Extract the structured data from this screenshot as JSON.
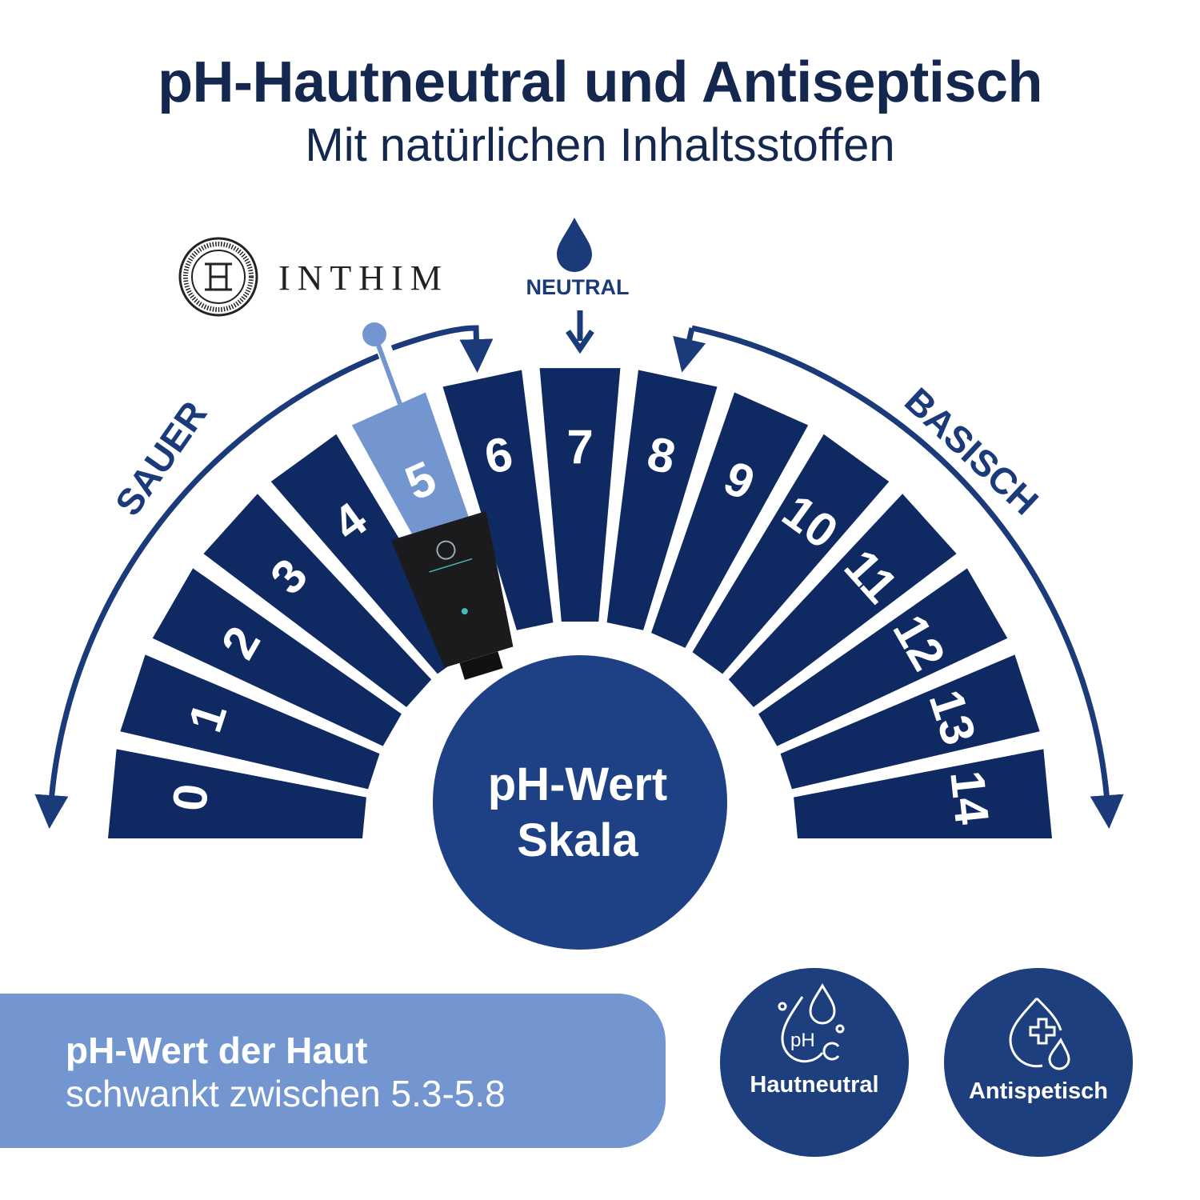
{
  "header": {
    "title": "pH-Hautneutral und Antiseptisch",
    "subtitle": "Mit natürlichen Inhaltsstoffen"
  },
  "brand": {
    "name": "INTHIM",
    "logo_letters": "IH"
  },
  "scale": {
    "values": [
      "0",
      "1",
      "2",
      "3",
      "4",
      "5",
      "6",
      "7",
      "8",
      "9",
      "10",
      "11",
      "12",
      "13",
      "14"
    ],
    "highlighted": "5",
    "acid_label": "SAUER",
    "base_label": "BASISCH",
    "neutral_label": "NEUTRAL",
    "center_line1": "pH-Wert",
    "center_line2": "Skala"
  },
  "banner": {
    "line1": "pH-Wert der Haut",
    "line2": "schwankt zwischen 5.3-5.8"
  },
  "badges": [
    {
      "label": "Hautneutral",
      "icon": "ph-drop-icon"
    },
    {
      "label": "Antispetisch",
      "icon": "medical-drop-icon"
    }
  ],
  "colors": {
    "navy": "#0f2a62",
    "center": "#1e4185",
    "highlight": "#7396d0",
    "arrow": "#1a3a7a",
    "text": "#13274f"
  }
}
